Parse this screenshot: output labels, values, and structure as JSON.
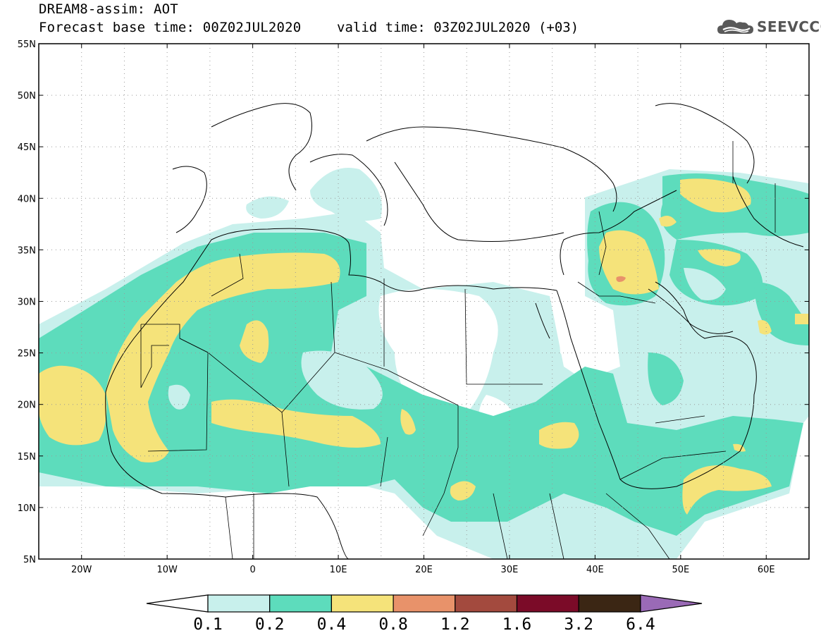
{
  "header": {
    "title": "DREAM8-assim: AOT",
    "base_time": "Forecast base time: 00Z02JUL2020",
    "valid_time": "valid time: 03Z02JUL2020 (+03)"
  },
  "logo": {
    "text": "SEEVCCC",
    "icon": "cloud-icon"
  },
  "map": {
    "lon_range": [
      -25,
      65
    ],
    "lat_range": [
      5,
      55
    ],
    "lat_ticks": [
      "5N",
      "10N",
      "15N",
      "20N",
      "25N",
      "30N",
      "35N",
      "40N",
      "45N",
      "50N",
      "55N"
    ],
    "lon_ticks": [
      "20W",
      "10W",
      "0",
      "10E",
      "20E",
      "30E",
      "40E",
      "50E",
      "60E"
    ],
    "gridlines": "dotted"
  },
  "colorbar": {
    "labels": [
      "0.1",
      "0.2",
      "0.4",
      "0.8",
      "1.2",
      "1.6",
      "3.2",
      "6.4"
    ],
    "colors": [
      "#ffffff",
      "#c8f0ec",
      "#5ddcbc",
      "#f5e37a",
      "#e8926a",
      "#a34a3e",
      "#7b0b28",
      "#3b2614",
      "#9a6ab6"
    ]
  }
}
